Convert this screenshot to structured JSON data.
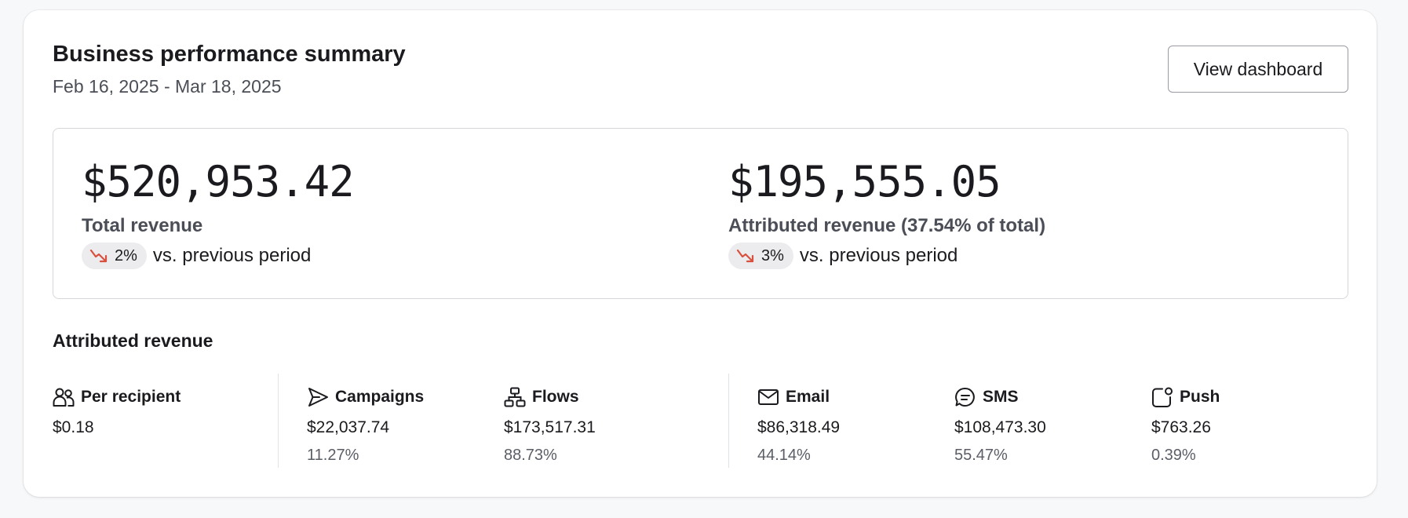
{
  "header": {
    "title": "Business performance summary",
    "date_range": "Feb 16, 2025 - Mar 18, 2025",
    "view_dashboard_label": "View dashboard"
  },
  "summary": {
    "total": {
      "value": "$520,953.42",
      "label": "Total revenue",
      "change": "2%",
      "change_direction": "down",
      "change_icon": "trend-down-icon",
      "comparison": "vs. previous period"
    },
    "attributed": {
      "value": "$195,555.05",
      "label": "Attributed revenue (37.54% of total)",
      "change": "3%",
      "change_direction": "down",
      "change_icon": "trend-down-icon",
      "comparison": "vs. previous period"
    }
  },
  "attributed_section": {
    "title": "Attributed revenue",
    "stats": [
      {
        "key": "per_recipient",
        "label": "Per recipient",
        "icon": "people-icon",
        "amount": "$0.18",
        "percent": ""
      },
      {
        "key": "campaigns",
        "label": "Campaigns",
        "icon": "send-icon",
        "amount": "$22,037.74",
        "percent": "11.27%"
      },
      {
        "key": "flows",
        "label": "Flows",
        "icon": "flow-icon",
        "amount": "$173,517.31",
        "percent": "88.73%"
      },
      {
        "key": "email",
        "label": "Email",
        "icon": "mail-icon",
        "amount": "$86,318.49",
        "percent": "44.14%"
      },
      {
        "key": "sms",
        "label": "SMS",
        "icon": "chat-icon",
        "amount": "$108,473.30",
        "percent": "55.47%"
      },
      {
        "key": "push",
        "label": "Push",
        "icon": "push-notification-icon",
        "amount": "$763.26",
        "percent": "0.39%"
      }
    ]
  },
  "colors": {
    "negative_trend": "#d9503f",
    "pill_background": "#ececee",
    "border": "#d6d7dc"
  }
}
